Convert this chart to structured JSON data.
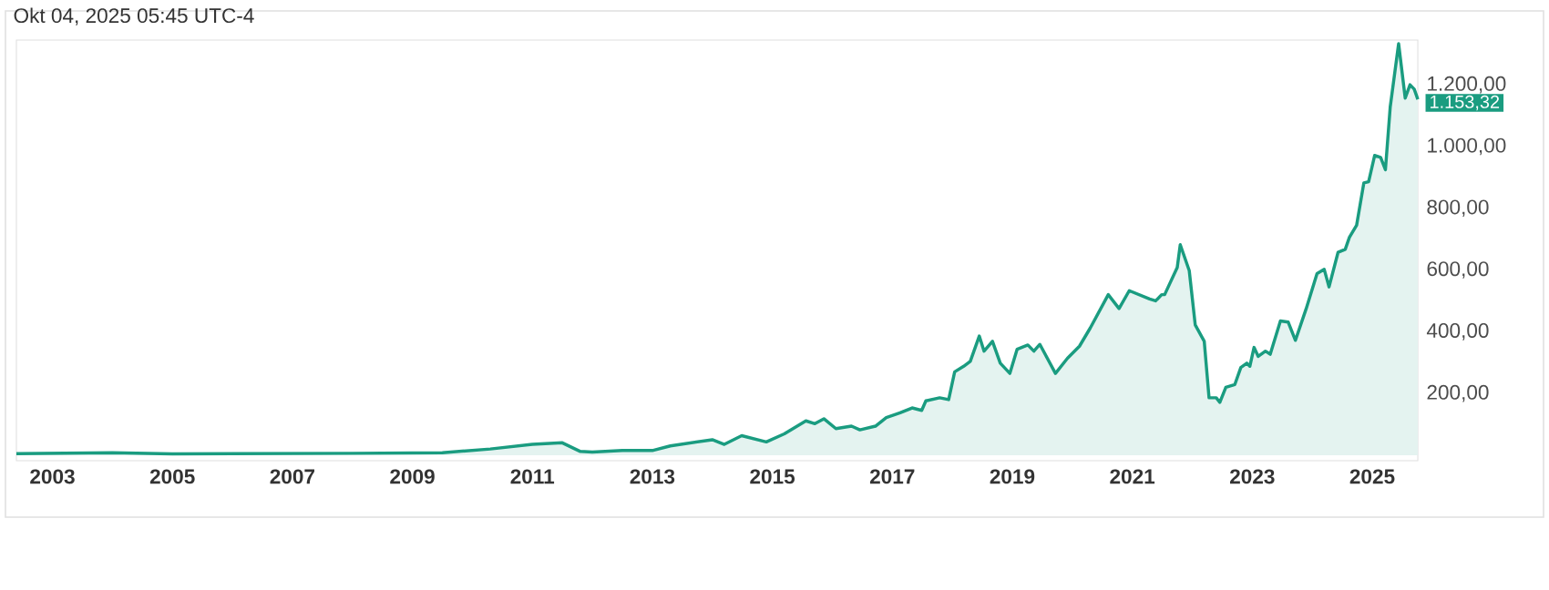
{
  "chart_data": {
    "type": "area",
    "title": "Okt 04, 2025 05:45 UTC-4",
    "x": [
      2002.4,
      2004,
      2005,
      2008,
      2009.5,
      2010.3,
      2011,
      2011.5,
      2011.8,
      2012,
      2012.5,
      2013,
      2013.3,
      2014,
      2014.2,
      2014.49,
      2014.9,
      2015.2,
      2015.56,
      2015.71,
      2015.86,
      2016.06,
      2016.32,
      2016.46,
      2016.72,
      2016.9,
      2017.13,
      2017.33,
      2017.49,
      2017.56,
      2017.79,
      2017.94,
      2018.04,
      2018.19,
      2018.3,
      2018.45,
      2018.53,
      2018.67,
      2018.8,
      2018.96,
      2019.08,
      2019.26,
      2019.36,
      2019.46,
      2019.72,
      2019.92,
      2020.12,
      2020.3,
      2020.6,
      2020.78,
      2020.95,
      2021.29,
      2021.39,
      2021.49,
      2021.54,
      2021.75,
      2021.8,
      2021.95,
      2022.05,
      2022.2,
      2022.28,
      2022.4,
      2022.46,
      2022.56,
      2022.71,
      2022.81,
      2022.91,
      2022.96,
      2023.03,
      2023.1,
      2023.22,
      2023.3,
      2023.47,
      2023.6,
      2023.72,
      2023.9,
      2024.08,
      2024.2,
      2024.28,
      2024.43,
      2024.55,
      2024.62,
      2024.74,
      2024.86,
      2024.94,
      2025.04,
      2025.14,
      2025.22,
      2025.3,
      2025.44,
      2025.55,
      2025.63,
      2025.7,
      2025.76
    ],
    "series": [
      {
        "color": "#1a9c80",
        "values": [
          5,
          8,
          4,
          6,
          8,
          20,
          35,
          40,
          12,
          10,
          15,
          15,
          30,
          50,
          35,
          63,
          43,
          69,
          111,
          102,
          118,
          86,
          94,
          82,
          94,
          122,
          137,
          153,
          145,
          176,
          186,
          180,
          270,
          288,
          304,
          386,
          337,
          369,
          298,
          265,
          343,
          357,
          337,
          359,
          265,
          314,
          353,
          412,
          520,
          475,
          533,
          506,
          500,
          520,
          520,
          608,
          682,
          598,
          422,
          369,
          186,
          186,
          171,
          220,
          229,
          284,
          298,
          288,
          349,
          320,
          337,
          327,
          435,
          431,
          372,
          475,
          588,
          602,
          545,
          657,
          667,
          706,
          745,
          882,
          886,
          971,
          965,
          925,
          1128,
          1333,
          1157,
          1200,
          1186,
          1153
        ]
      }
    ],
    "xlim": [
      2002.4,
      2025.76
    ],
    "xticks": [
      2003,
      2005,
      2007,
      2009,
      2011,
      2013,
      2015,
      2017,
      2019,
      2021,
      2023,
      2025
    ],
    "ylim": [
      -18,
      1345
    ],
    "yticks": [
      {
        "value": 200,
        "label": "200,00"
      },
      {
        "value": 400,
        "label": "400,00"
      },
      {
        "value": 600,
        "label": "600,00"
      },
      {
        "value": 800,
        "label": "800,00"
      },
      {
        "value": 1000,
        "label": "1.000,00"
      },
      {
        "value": 1200,
        "label": "1.200,00"
      }
    ],
    "annotations": [
      {
        "text": "1.153,32",
        "x": 2025.76,
        "y": 1153.32
      }
    ],
    "grid": false
  }
}
